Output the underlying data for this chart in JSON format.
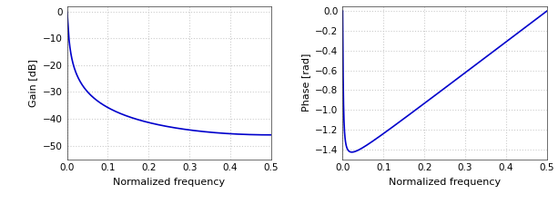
{
  "subplot1_ylabel": "Gain [dB]",
  "subplot1_xlabel": "Normalized frequency",
  "subplot2_ylabel": "Phase [rad]",
  "subplot2_xlabel": "Normalized frequency",
  "line_color": "#0000cc",
  "line_width": 1.2,
  "grid_color": "#cccccc",
  "grid_linestyle": "dotted",
  "background_color": "#ffffff",
  "pole": 0.99,
  "n_points": 2000,
  "freq_min": 0.0,
  "freq_max": 0.5,
  "gain_ylim": [
    -55,
    2
  ],
  "gain_yticks": [
    0,
    -10,
    -20,
    -30,
    -40,
    -50
  ],
  "phase_ylim": [
    -1.5,
    0.05
  ],
  "phase_yticks": [
    0.0,
    -0.2,
    -0.4,
    -0.6,
    -0.8,
    -1.0,
    -1.2,
    -1.4
  ],
  "xticks": [
    0.0,
    0.1,
    0.2,
    0.3,
    0.4,
    0.5
  ],
  "figsize": [
    6.13,
    2.25
  ],
  "dpi": 100
}
